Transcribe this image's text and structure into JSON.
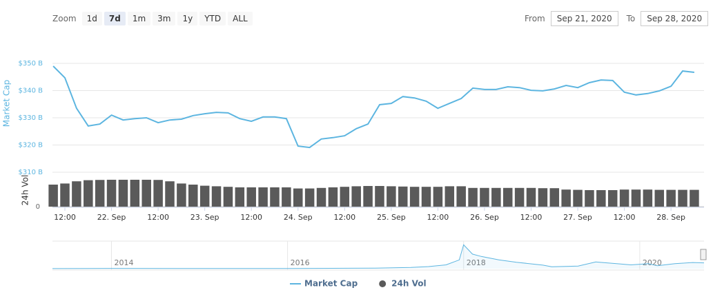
{
  "range_selector": {
    "zoom_label": "Zoom",
    "buttons": [
      "1d",
      "7d",
      "1m",
      "3m",
      "1y",
      "YTD",
      "ALL"
    ],
    "selected": "7d",
    "from_label": "From",
    "from": "Sep 21, 2020",
    "to_label": "To",
    "to": "Sep 28, 2020"
  },
  "chart_data": [
    {
      "type": "line",
      "y_title": "Market Cap",
      "y2_title": "24h Vol",
      "grid": true,
      "legend": "bottom",
      "x": [
        "2020-09-21T09:00",
        "2020-09-21T12:00",
        "2020-09-21T15:00",
        "2020-09-21T18:00",
        "2020-09-21T21:00",
        "2020-09-22T00:00",
        "2020-09-22T03:00",
        "2020-09-22T06:00",
        "2020-09-22T09:00",
        "2020-09-22T12:00",
        "2020-09-22T15:00",
        "2020-09-22T18:00",
        "2020-09-22T21:00",
        "2020-09-23T00:00",
        "2020-09-23T03:00",
        "2020-09-23T06:00",
        "2020-09-23T09:00",
        "2020-09-23T12:00",
        "2020-09-23T15:00",
        "2020-09-23T18:00",
        "2020-09-23T21:00",
        "2020-09-24T00:00",
        "2020-09-24T03:00",
        "2020-09-24T06:00",
        "2020-09-24T09:00",
        "2020-09-24T12:00",
        "2020-09-24T15:00",
        "2020-09-24T18:00",
        "2020-09-24T21:00",
        "2020-09-25T00:00",
        "2020-09-25T03:00",
        "2020-09-25T06:00",
        "2020-09-25T09:00",
        "2020-09-25T12:00",
        "2020-09-25T15:00",
        "2020-09-25T18:00",
        "2020-09-25T21:00",
        "2020-09-26T00:00",
        "2020-09-26T03:00",
        "2020-09-26T06:00",
        "2020-09-26T09:00",
        "2020-09-26T12:00",
        "2020-09-26T15:00",
        "2020-09-26T18:00",
        "2020-09-26T21:00",
        "2020-09-27T00:00",
        "2020-09-27T03:00",
        "2020-09-27T06:00",
        "2020-09-27T09:00",
        "2020-09-27T12:00",
        "2020-09-27T15:00",
        "2020-09-27T18:00",
        "2020-09-27T21:00",
        "2020-09-28T00:00",
        "2020-09-28T03:00",
        "2020-09-28T06:00"
      ],
      "xlim": [
        "2020-09-21T08:48",
        "2020-09-28T08:30"
      ],
      "xticks": [
        {
          "value": "2020-09-21T12:00",
          "label": "12:00"
        },
        {
          "value": "2020-09-22T00:00",
          "label": "22. Sep"
        },
        {
          "value": "2020-09-22T12:00",
          "label": "12:00"
        },
        {
          "value": "2020-09-23T00:00",
          "label": "23. Sep"
        },
        {
          "value": "2020-09-23T12:00",
          "label": "12:00"
        },
        {
          "value": "2020-09-24T00:00",
          "label": "24. Sep"
        },
        {
          "value": "2020-09-24T12:00",
          "label": "12:00"
        },
        {
          "value": "2020-09-25T00:00",
          "label": "25. Sep"
        },
        {
          "value": "2020-09-25T12:00",
          "label": "12:00"
        },
        {
          "value": "2020-09-26T00:00",
          "label": "26. Sep"
        },
        {
          "value": "2020-09-26T12:00",
          "label": "12:00"
        },
        {
          "value": "2020-09-27T00:00",
          "label": "27. Sep"
        },
        {
          "value": "2020-09-27T12:00",
          "label": "12:00"
        },
        {
          "value": "2020-09-28T00:00",
          "label": "28. Sep"
        }
      ],
      "ylim": [
        310,
        350
      ],
      "yticks": [
        {
          "value": 310,
          "label": "$310 B"
        },
        {
          "value": 320,
          "label": "$320 B"
        },
        {
          "value": 330,
          "label": "$330 B"
        },
        {
          "value": 340,
          "label": "$340 B"
        },
        {
          "value": 350,
          "label": "$350 B"
        }
      ],
      "y2lim": [
        0,
        60
      ],
      "y2ticks": [
        0
      ],
      "series": [
        {
          "name": "Market Cap",
          "color": "#5cb5e0",
          "values": [
            349.0,
            344.7,
            333.5,
            327.0,
            327.7,
            331.0,
            329.2,
            329.7,
            330.0,
            328.2,
            329.2,
            329.5,
            330.8,
            331.5,
            332.0,
            331.8,
            329.7,
            328.7,
            330.3,
            330.3,
            329.7,
            319.6,
            319.1,
            322.2,
            322.7,
            323.4,
            326.0,
            327.7,
            334.8,
            335.3,
            337.8,
            337.3,
            336.1,
            333.5,
            335.3,
            337.1,
            340.9,
            340.4,
            340.4,
            341.4,
            341.1,
            340.1,
            339.9,
            340.6,
            341.9,
            341.1,
            342.9,
            343.9,
            343.7,
            339.4,
            338.4,
            338.9,
            339.9,
            341.6,
            347.2,
            346.7
          ]
        },
        {
          "name": "24h Vol",
          "color": "#5a5a5a",
          "type": "bar",
          "axis": "y2",
          "values": [
            40,
            42,
            46,
            48,
            48.5,
            48.8,
            48.8,
            48.8,
            48.8,
            48.5,
            46,
            42,
            40,
            38,
            37,
            36,
            35,
            35,
            35,
            35,
            35,
            33,
            33,
            34,
            35,
            36,
            37,
            37.5,
            37.5,
            37,
            36.5,
            36,
            36,
            36,
            37,
            37,
            34,
            34,
            34,
            34,
            34,
            34,
            33.5,
            33.5,
            31,
            30.5,
            30,
            30,
            30,
            31,
            31,
            31,
            30.5,
            30.5,
            30.5,
            30.5
          ]
        }
      ]
    },
    {
      "type": "area",
      "color": "#5cb5e0",
      "x": [
        2013.33,
        2014,
        2015,
        2016,
        2016.5,
        2017,
        2017.4,
        2017.6,
        2017.8,
        2017.95,
        2018.0,
        2018.1,
        2018.2,
        2018.4,
        2018.6,
        2018.9,
        2019.0,
        2019.3,
        2019.5,
        2019.7,
        2019.9,
        2020.1,
        2020.2,
        2020.4,
        2020.6,
        2020.73
      ],
      "values": [
        1.5,
        10,
        4,
        6,
        12,
        17,
        40,
        70,
        130,
        300,
        820,
        500,
        420,
        300,
        220,
        120,
        65,
        90,
        230,
        180,
        130,
        170,
        100,
        170,
        210,
        200
      ],
      "xlim": [
        2013.33,
        2020.73
      ],
      "xticks": [
        2014,
        2016,
        2018,
        2020
      ],
      "ylim": [
        0,
        900
      ]
    }
  ]
}
